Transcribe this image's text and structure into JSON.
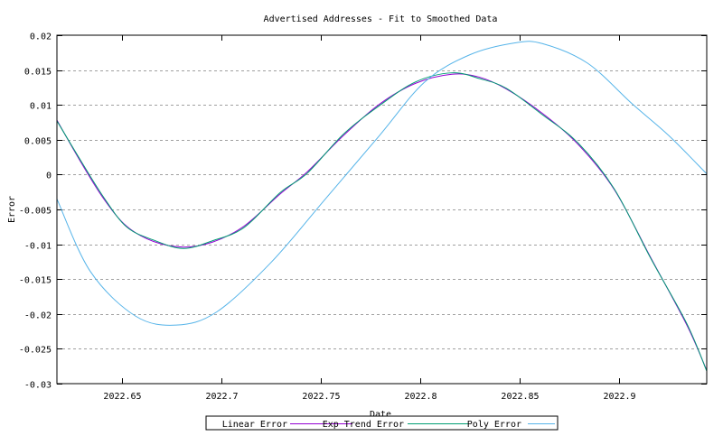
{
  "chart_data": {
    "type": "line",
    "title": "Advertised Addresses -  Fit to Smoothed Data",
    "xlabel": "Date",
    "ylabel": "Error",
    "xlim": [
      2022.6173,
      2022.9441
    ],
    "ylim": [
      -0.03,
      0.02
    ],
    "grid": "horizontal dashed",
    "legend_placement": "bottom-center",
    "xticks": [
      2022.65,
      2022.7,
      2022.75,
      2022.8,
      2022.85,
      2022.9
    ],
    "xtick_labels": [
      "2022.65",
      "2022.7",
      "2022.75",
      "2022.8",
      "2022.85",
      "2022.9"
    ],
    "yticks": [
      0.02,
      0.015,
      0.01,
      0.005,
      0,
      -0.005,
      -0.01,
      -0.015,
      -0.02,
      -0.025,
      -0.03
    ],
    "ytick_labels": [
      "0.02",
      "0.015",
      "0.01",
      "0.005",
      "0",
      "-0.005",
      "-0.01",
      "-0.015",
      "-0.02",
      "-0.025",
      "-0.03"
    ],
    "series": [
      {
        "name": "Linear Error",
        "color": "#9400d3",
        "x": [
          2022.6173,
          2022.6295,
          2022.6409,
          2022.6523,
          2022.6659,
          2022.6809,
          2022.6955,
          2022.7114,
          2022.7295,
          2022.7432,
          2022.7614,
          2022.7795,
          2022.7977,
          2022.8159,
          2022.8295,
          2022.8432,
          2022.8614,
          2022.8795,
          2022.8977,
          2022.9159,
          2022.9341,
          2022.9441
        ],
        "y": [
          0.0078,
          0.0017,
          -0.0035,
          -0.0074,
          -0.0096,
          -0.0104,
          -0.0097,
          -0.0074,
          -0.0028,
          0.0004,
          0.0056,
          0.0101,
          0.0131,
          0.0144,
          0.014,
          0.0123,
          0.0088,
          0.0043,
          -0.0022,
          -0.0119,
          -0.0216,
          -0.0281
        ]
      },
      {
        "name": "Exp Trend Error",
        "color": "#009e73",
        "x": [
          2022.6173,
          2022.6295,
          2022.6409,
          2022.6523,
          2022.6659,
          2022.6809,
          2022.6955,
          2022.7114,
          2022.7295,
          2022.7432,
          2022.7614,
          2022.7795,
          2022.7977,
          2022.8159,
          2022.8295,
          2022.8432,
          2022.8614,
          2022.8795,
          2022.8977,
          2022.9159,
          2022.9341,
          2022.9441
        ],
        "y": [
          0.0077,
          0.0019,
          -0.0033,
          -0.0075,
          -0.0094,
          -0.0106,
          -0.0095,
          -0.0076,
          -0.0026,
          0.0002,
          0.0058,
          0.0099,
          0.0133,
          0.0146,
          0.0138,
          0.0124,
          0.0086,
          0.0045,
          -0.0021,
          -0.012,
          -0.0214,
          -0.0282
        ]
      },
      {
        "name": "Poly Error",
        "color": "#56b4e9",
        "x": [
          2022.6173,
          2022.6341,
          2022.6568,
          2022.6773,
          2022.6977,
          2022.725,
          2022.7523,
          2022.7795,
          2022.8023,
          2022.825,
          2022.8477,
          2022.8614,
          2022.8841,
          2022.9068,
          2022.925,
          2022.9441
        ],
        "y": [
          -0.0035,
          -0.0139,
          -0.0203,
          -0.0216,
          -0.0197,
          -0.0126,
          -0.0035,
          0.0056,
          0.0133,
          0.0172,
          0.0189,
          0.0188,
          0.016,
          0.0101,
          0.0056,
          0.0001
        ]
      }
    ]
  }
}
